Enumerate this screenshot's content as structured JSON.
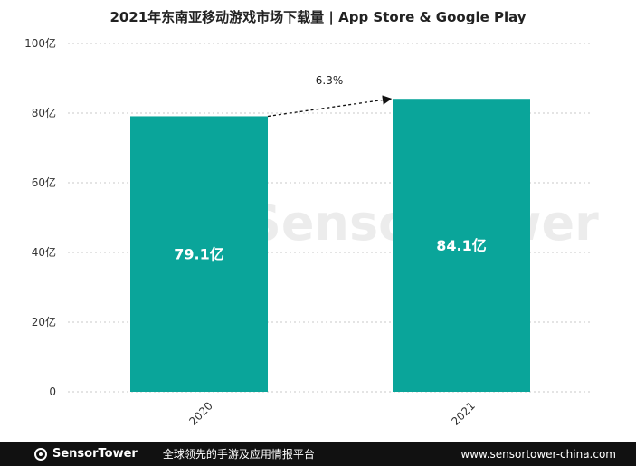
{
  "chart_data": {
    "type": "bar",
    "title": "2021年东南亚移动游戏市场下载量 | App Store & Google Play",
    "categories": [
      "2020",
      "2021"
    ],
    "values": [
      79.1,
      84.1
    ],
    "value_labels": [
      "79.1亿",
      "84.1亿"
    ],
    "y_ticks": [
      "0",
      "20亿",
      "40亿",
      "60亿",
      "80亿",
      "100亿"
    ],
    "ylim": [
      0,
      100
    ],
    "grid": true,
    "bar_color": "#0aa59a",
    "growth_annotation": "6.3%"
  },
  "watermark": {
    "text": "SensorTower"
  },
  "footer": {
    "brand": "SensorTower",
    "slogan": "全球领先的手游及应用情报平台",
    "url": "www.sensortower-china.com"
  }
}
